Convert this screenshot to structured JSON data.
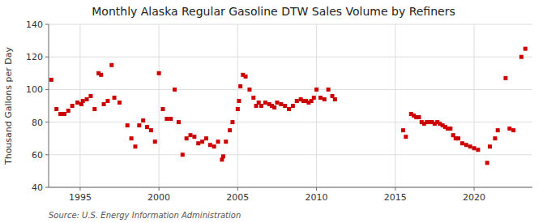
{
  "chart_data": {
    "type": "scatter",
    "title": "Monthly Alaska Regular Gasoline DTW Sales Volume by Refiners",
    "y_label": "Thousand Gallons per Day",
    "annotations": [
      "Source: U.S. Energy Information Administration"
    ],
    "color": "#cc0000",
    "marker": "square",
    "grid": true,
    "xlim": [
      1993.0,
      2023.7
    ],
    "xticks": [
      1995,
      2000,
      2005,
      2010,
      2015,
      2020
    ],
    "ylim": [
      40,
      140
    ],
    "yticks": [
      40,
      60,
      80,
      100,
      120,
      140
    ],
    "x": [
      1993.17,
      1993.5,
      1993.75,
      1994.0,
      1994.25,
      1994.5,
      1994.83,
      1995.08,
      1995.17,
      1995.42,
      1995.67,
      1995.92,
      1996.17,
      1996.33,
      1996.5,
      1996.75,
      1997.0,
      1997.17,
      1997.5,
      1998.0,
      1998.25,
      1998.5,
      1998.75,
      1999.0,
      1999.25,
      1999.5,
      1999.75,
      2000.0,
      2000.25,
      2000.5,
      2000.75,
      2001.0,
      2001.25,
      2001.5,
      2001.75,
      2002.0,
      2002.25,
      2002.5,
      2002.75,
      2003.0,
      2003.25,
      2003.5,
      2003.75,
      2004.0,
      2004.08,
      2004.25,
      2004.5,
      2004.67,
      2005.0,
      2005.08,
      2005.17,
      2005.33,
      2005.5,
      2005.75,
      2006.0,
      2006.17,
      2006.33,
      2006.5,
      2006.75,
      2007.0,
      2007.17,
      2007.33,
      2007.5,
      2007.75,
      2008.0,
      2008.25,
      2008.5,
      2008.75,
      2009.0,
      2009.17,
      2009.33,
      2009.5,
      2009.67,
      2009.83,
      2010.0,
      2010.25,
      2010.5,
      2010.75,
      2011.0,
      2011.17,
      2015.5,
      2015.67,
      2016.0,
      2016.17,
      2016.33,
      2016.5,
      2016.67,
      2016.83,
      2017.0,
      2017.17,
      2017.33,
      2017.5,
      2017.67,
      2017.83,
      2018.0,
      2018.17,
      2018.33,
      2018.5,
      2018.67,
      2018.83,
      2019.0,
      2019.25,
      2019.5,
      2019.75,
      2020.0,
      2020.25,
      2020.83,
      2021.0,
      2021.33,
      2021.5,
      2022.0,
      2022.25,
      2022.5,
      2023.0,
      2023.25
    ],
    "values": [
      106,
      88,
      85,
      85,
      87,
      90,
      92,
      91,
      93,
      94,
      96,
      88,
      110,
      109,
      91,
      93,
      115,
      95,
      92,
      78,
      70,
      65,
      78,
      81,
      77,
      75,
      68,
      110,
      88,
      82,
      82,
      100,
      80,
      60,
      70,
      72,
      71,
      67,
      68,
      70,
      66,
      65,
      68,
      57,
      59,
      68,
      75,
      80,
      88,
      93,
      102,
      109,
      108,
      100,
      95,
      90,
      92,
      90,
      92,
      91,
      90,
      89,
      92,
      91,
      90,
      88,
      90,
      93,
      94,
      93,
      93,
      92,
      93,
      95,
      100,
      95,
      94,
      100,
      96,
      94,
      75,
      71,
      85,
      84,
      83,
      83,
      80,
      79,
      80,
      80,
      80,
      79,
      80,
      79,
      78,
      77,
      76,
      76,
      72,
      70,
      70,
      67,
      66,
      65,
      64,
      63,
      55,
      65,
      70,
      75,
      107,
      76,
      75,
      120,
      125
    ]
  }
}
